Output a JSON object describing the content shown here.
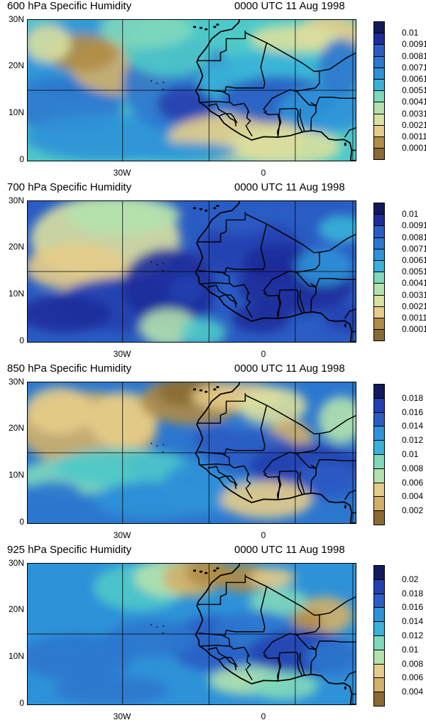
{
  "palette": [
    "#8a6a33",
    "#b08c46",
    "#d2b06a",
    "#e6cc8a",
    "#d9e0a0",
    "#b4e2ae",
    "#7fd8bb",
    "#4ec9c9",
    "#38b2d8",
    "#2e92d8",
    "#2c77cf",
    "#2a5cc4",
    "#2440b0",
    "#1d2c9a",
    "#13195d"
  ],
  "panels": [
    {
      "title": "600 hPa Specific Humidity",
      "time": "0000 UTC 11 Aug 1998",
      "y_labels": [
        "30N",
        "20N",
        "10N",
        "0"
      ],
      "x_labels": [
        "30W",
        "0"
      ],
      "colorbar": [
        "0.01",
        "0.0091",
        "0.0081",
        "0.0071",
        "0.0061",
        "0.0051",
        "0.0041",
        "0.0031",
        "0.0021",
        "0.0011",
        "0.0001"
      ]
    },
    {
      "title": "700 hPa Specific Humidity",
      "time": "0000 UTC 11 Aug 1998",
      "y_labels": [
        "30N",
        "20N",
        "10N",
        "0"
      ],
      "x_labels": [
        "30W",
        "0"
      ],
      "colorbar": [
        "0.01",
        "0.0091",
        "0.0081",
        "0.0071",
        "0.0061",
        "0.0051",
        "0.0041",
        "0.0031",
        "0.0021",
        "0.0011",
        "0.0001"
      ]
    },
    {
      "title": "850 hPa Specific Humidity",
      "time": "0000 UTC 11 Aug 1998",
      "y_labels": [
        "30N",
        "20N",
        "10N",
        "0"
      ],
      "x_labels": [
        "30W",
        "0"
      ],
      "colorbar": [
        "0.018",
        "0.016",
        "0.014",
        "0.012",
        "0.01",
        "0.008",
        "0.006",
        "0.004",
        "0.002"
      ]
    },
    {
      "title": "925 hPa Specific Humidity",
      "time": "0000 UTC 11 Aug 1998",
      "y_labels": [
        "30N",
        "20N",
        "10N",
        "0"
      ],
      "x_labels": [
        "30W",
        "0"
      ],
      "colorbar": [
        "0.02",
        "0.018",
        "0.016",
        "0.014",
        "0.012",
        "0.01",
        "0.008",
        "0.006",
        "0.004"
      ]
    }
  ]
}
